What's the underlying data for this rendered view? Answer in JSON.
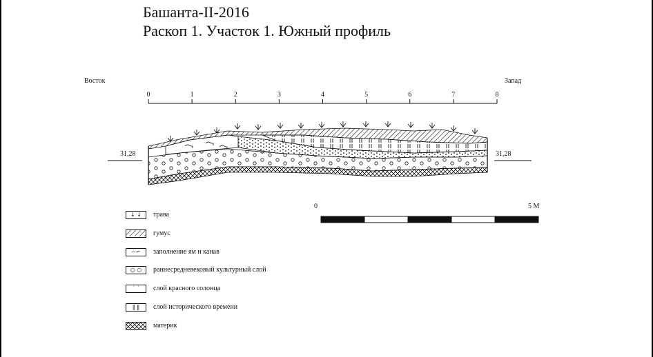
{
  "title": {
    "line1": "Башанта-II-2016",
    "line2": "Раскоп 1. Участок 1. Южный профиль"
  },
  "profile": {
    "direction_left": "Восток",
    "direction_right": "Запад",
    "elevation_left": "31,28",
    "elevation_right": "31,28",
    "ruler_ticks": [
      "0",
      "1",
      "2",
      "3",
      "4",
      "5",
      "6",
      "7",
      "8"
    ]
  },
  "scale_bar": {
    "start_label": "0",
    "end_label": "5 М",
    "segments": 5
  },
  "legend": [
    {
      "key": "grass",
      "label": "трава",
      "symbol": "↓ ↓"
    },
    {
      "key": "humus",
      "label": "гумус",
      "symbol": "hatch"
    },
    {
      "key": "pit-fill",
      "label": "заполнение ям и канав",
      "symbol": "~⌐"
    },
    {
      "key": "early-medieval",
      "label": "раннесредневековый культурный слой",
      "symbol": "○ ○"
    },
    {
      "key": "red-solonets",
      "label": "слой красного солонца",
      "symbol": "˙ ˙"
    },
    {
      "key": "historic-time",
      "label": "слой исторического времени",
      "symbol": "‖ ‖"
    },
    {
      "key": "bedrock",
      "label": "материк",
      "symbol": "crosshatch"
    }
  ],
  "colors": {
    "ink": "#111111",
    "background": "#ffffff"
  }
}
